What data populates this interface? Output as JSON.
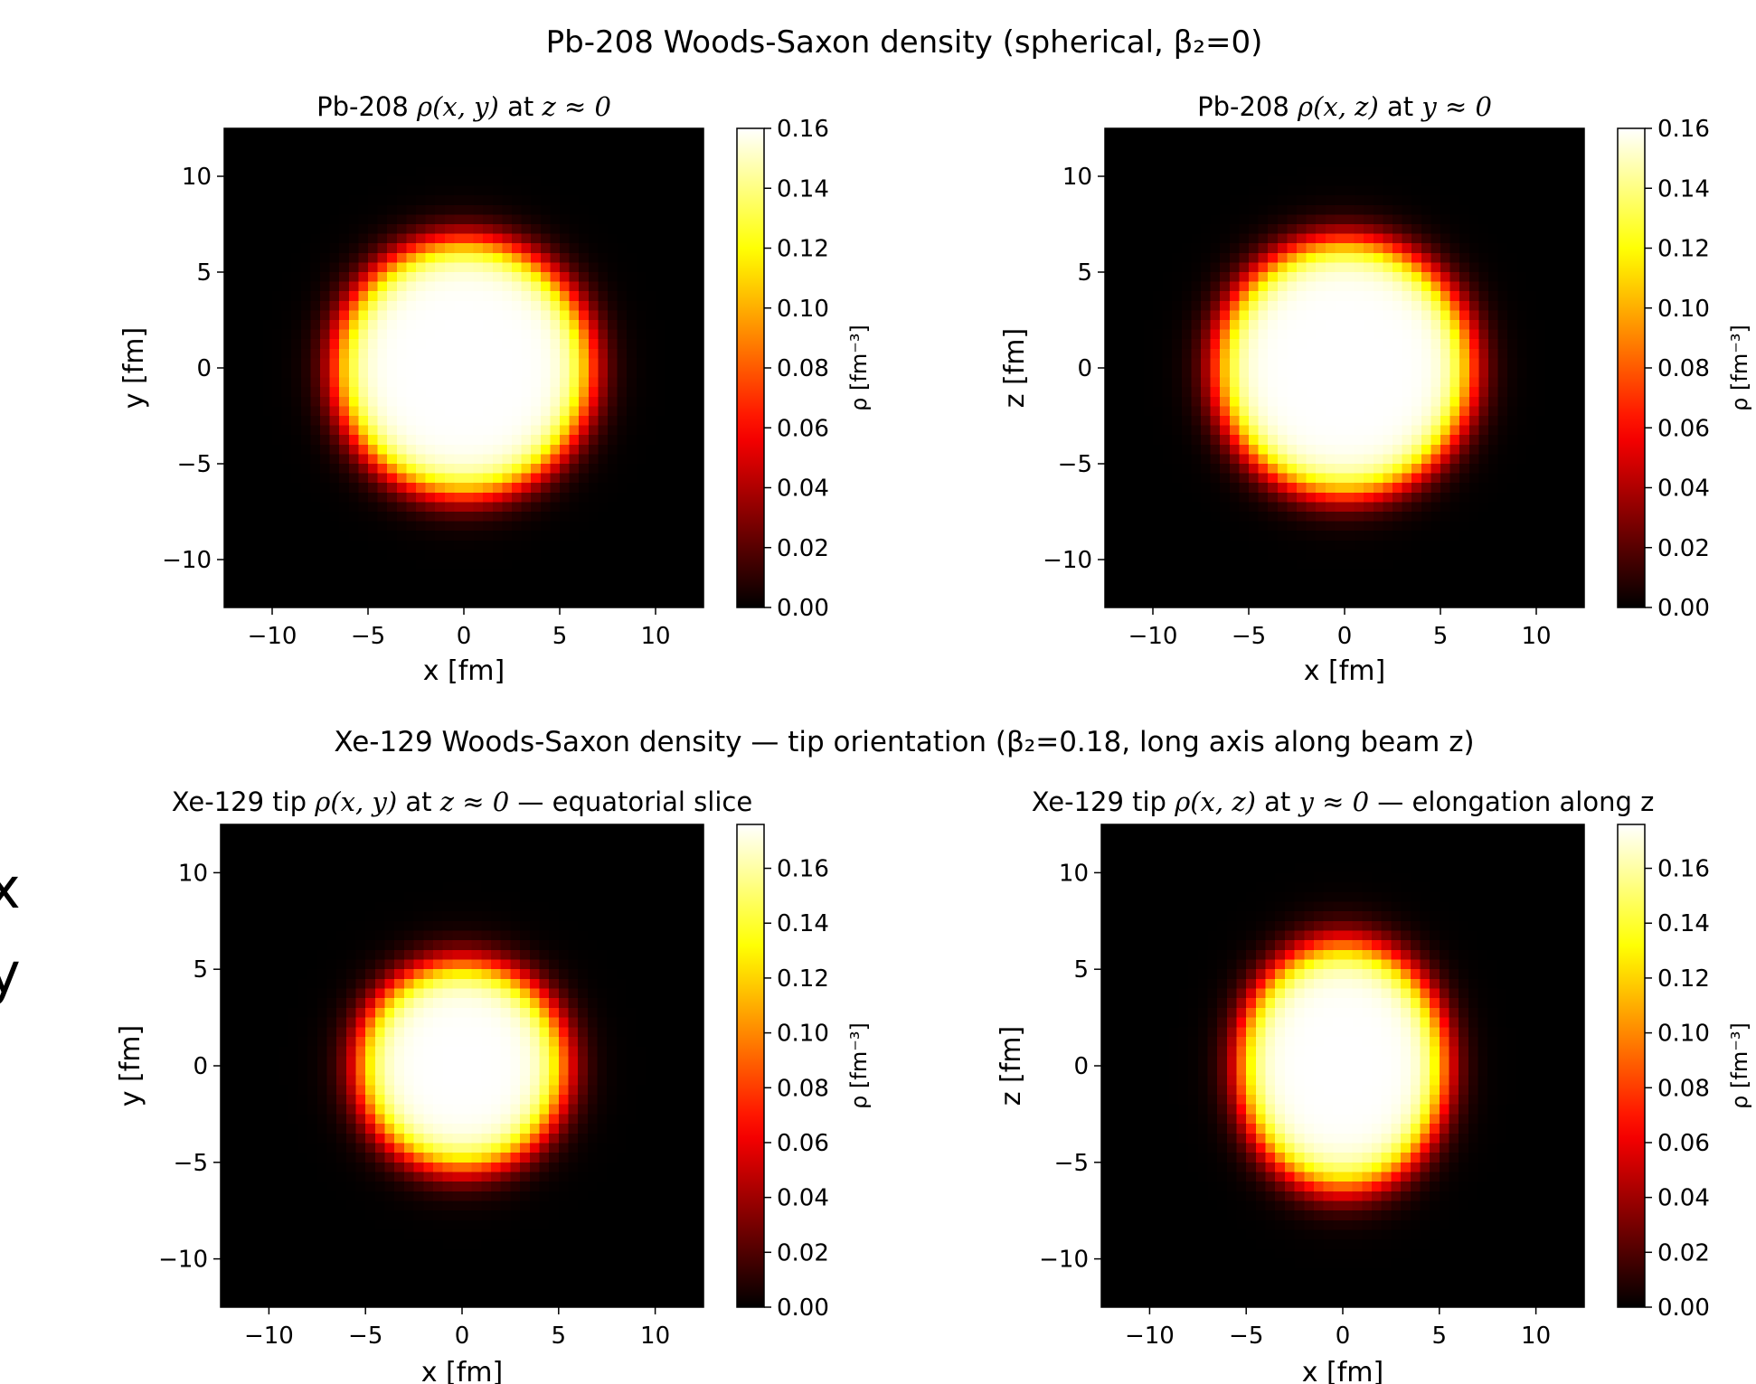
{
  "figure": {
    "row_titles": [
      "Pb-208 Woods-Saxon density (spherical, β₂=0)",
      "Xe-129 Woods-Saxon density — tip orientation (β₂=0.18, long axis along beam z)"
    ],
    "stray_marks": [
      "x",
      "y"
    ]
  },
  "chart_data": [
    {
      "type": "heatmap",
      "title_plain": "Pb-208  ",
      "title_math": "ρ(x, y)",
      "title_mid": " at ",
      "title_cond": "z ≈ 0",
      "title_suffix": "",
      "xlabel": "x [fm]",
      "ylabel": "y [fm]",
      "xlim": [
        -12.5,
        12.5
      ],
      "ylim": [
        -12.5,
        12.5
      ],
      "xticks": [
        -10,
        -5,
        0,
        5,
        10
      ],
      "yticks": [
        -10,
        -5,
        0,
        5,
        10
      ],
      "xtick_labels": [
        "−10",
        "−5",
        "0",
        "5",
        "10"
      ],
      "ytick_labels": [
        "−10",
        "−5",
        "0",
        "5",
        "10"
      ],
      "grid": false,
      "colormap": "hot",
      "field": {
        "rho0": 0.16,
        "radius_x": 6.6,
        "radius_y": 6.6,
        "diffuseness": 0.55,
        "grid_n": 50
      },
      "colorbar": {
        "label": "ρ [fm⁻³]",
        "range": [
          0.0,
          0.16
        ],
        "ticks": [
          0.0,
          0.02,
          0.04,
          0.06,
          0.08,
          0.1,
          0.12,
          0.14,
          0.16
        ],
        "tick_labels": [
          "0.00",
          "0.02",
          "0.04",
          "0.06",
          "0.08",
          "0.10",
          "0.12",
          "0.14",
          "0.16"
        ]
      }
    },
    {
      "type": "heatmap",
      "title_plain": "Pb-208  ",
      "title_math": "ρ(x, z)",
      "title_mid": " at ",
      "title_cond": "y ≈ 0",
      "title_suffix": "",
      "xlabel": "x [fm]",
      "ylabel": "z [fm]",
      "xlim": [
        -12.5,
        12.5
      ],
      "ylim": [
        -12.5,
        12.5
      ],
      "xticks": [
        -10,
        -5,
        0,
        5,
        10
      ],
      "yticks": [
        -10,
        -5,
        0,
        5,
        10
      ],
      "xtick_labels": [
        "−10",
        "−5",
        "0",
        "5",
        "10"
      ],
      "ytick_labels": [
        "−10",
        "−5",
        "0",
        "5",
        "10"
      ],
      "grid": false,
      "colormap": "hot",
      "field": {
        "rho0": 0.16,
        "radius_x": 6.6,
        "radius_y": 6.6,
        "diffuseness": 0.55,
        "grid_n": 50
      },
      "colorbar": {
        "label": "ρ [fm⁻³]",
        "range": [
          0.0,
          0.16
        ],
        "ticks": [
          0.0,
          0.02,
          0.04,
          0.06,
          0.08,
          0.1,
          0.12,
          0.14,
          0.16
        ],
        "tick_labels": [
          "0.00",
          "0.02",
          "0.04",
          "0.06",
          "0.08",
          "0.10",
          "0.12",
          "0.14",
          "0.16"
        ]
      }
    },
    {
      "type": "heatmap",
      "title_plain": "Xe-129 tip  ",
      "title_math": "ρ(x, y)",
      "title_mid": " at ",
      "title_cond": "z ≈ 0",
      "title_suffix": " — equatorial slice",
      "xlabel": "x [fm]",
      "ylabel": "y [fm]",
      "xlim": [
        -12.5,
        12.5
      ],
      "ylim": [
        -12.5,
        12.5
      ],
      "xticks": [
        -10,
        -5,
        0,
        5,
        10
      ],
      "yticks": [
        -10,
        -5,
        0,
        5,
        10
      ],
      "xtick_labels": [
        "−10",
        "−5",
        "0",
        "5",
        "10"
      ],
      "ytick_labels": [
        "−10",
        "−5",
        "0",
        "5",
        "10"
      ],
      "grid": false,
      "colormap": "hot",
      "field": {
        "rho0": 0.176,
        "radius_x": 5.3,
        "radius_y": 5.3,
        "diffuseness": 0.55,
        "grid_n": 50
      },
      "colorbar": {
        "label": "ρ [fm⁻³]",
        "range": [
          0.0,
          0.176
        ],
        "ticks": [
          0.0,
          0.02,
          0.04,
          0.06,
          0.08,
          0.1,
          0.12,
          0.14,
          0.16
        ],
        "tick_labels": [
          "0.00",
          "0.02",
          "0.04",
          "0.06",
          "0.08",
          "0.10",
          "0.12",
          "0.14",
          "0.16"
        ]
      }
    },
    {
      "type": "heatmap",
      "title_plain": "Xe-129 tip  ",
      "title_math": "ρ(x, z)",
      "title_mid": " at ",
      "title_cond": "y ≈ 0",
      "title_suffix": " — elongation along z",
      "xlabel": "x [fm]",
      "ylabel": "z [fm]",
      "xlim": [
        -12.5,
        12.5
      ],
      "ylim": [
        -12.5,
        12.5
      ],
      "xticks": [
        -10,
        -5,
        0,
        5,
        10
      ],
      "yticks": [
        -10,
        -5,
        0,
        5,
        10
      ],
      "xtick_labels": [
        "−10",
        "−5",
        "0",
        "5",
        "10"
      ],
      "ytick_labels": [
        "−10",
        "−5",
        "0",
        "5",
        "10"
      ],
      "grid": false,
      "colormap": "hot",
      "field": {
        "rho0": 0.176,
        "radius_x": 5.3,
        "radius_y": 6.3,
        "diffuseness": 0.55,
        "grid_n": 50
      },
      "colorbar": {
        "label": "ρ [fm⁻³]",
        "range": [
          0.0,
          0.176
        ],
        "ticks": [
          0.0,
          0.02,
          0.04,
          0.06,
          0.08,
          0.1,
          0.12,
          0.14,
          0.16
        ],
        "tick_labels": [
          "0.00",
          "0.02",
          "0.04",
          "0.06",
          "0.08",
          "0.10",
          "0.12",
          "0.14",
          "0.16"
        ]
      }
    }
  ]
}
